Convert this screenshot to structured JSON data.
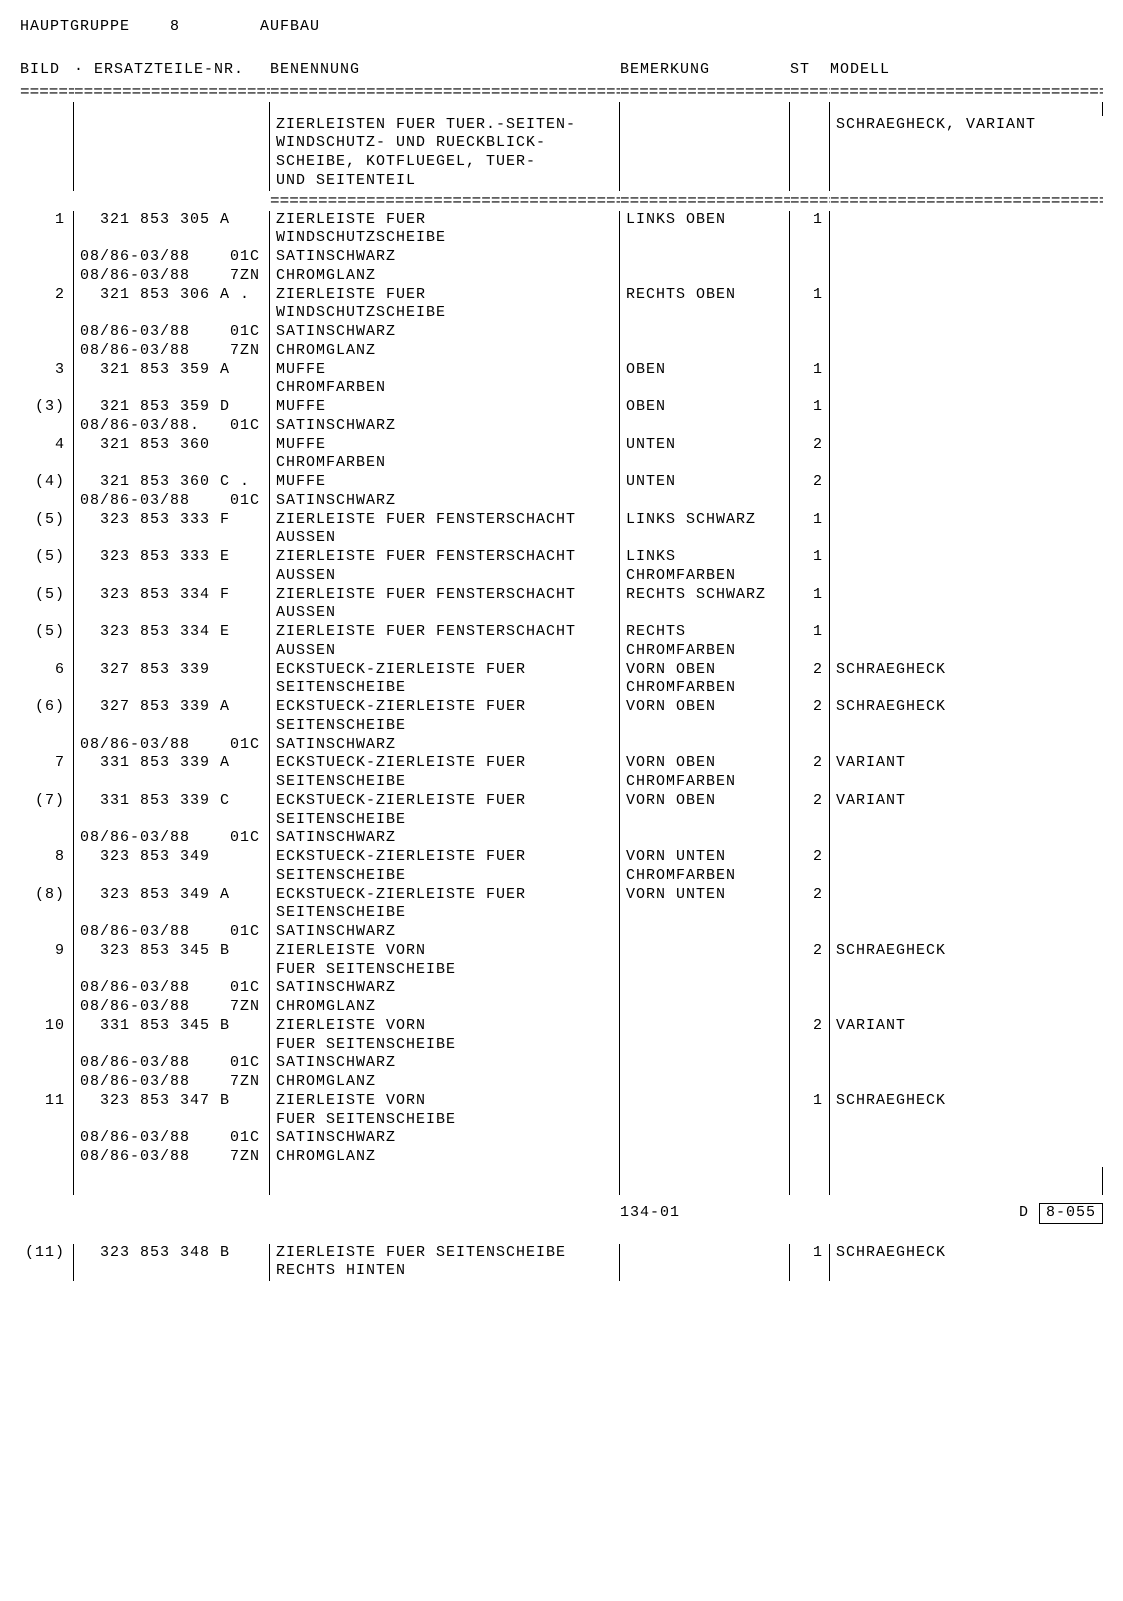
{
  "header": {
    "group_label": "HAUPTGRUPPE",
    "group_num": "8",
    "section": "AUFBAU"
  },
  "columns": {
    "bild": "BILD",
    "part": "· ERSATZTEILE-NR.",
    "ben": "BENENNUNG",
    "bem": "BEMERKUNG",
    "st": "ST",
    "mod": "MODELL"
  },
  "sep": "=====================================",
  "intro": {
    "ben": "ZIERLEISTEN FUER TUER.-SEITEN-\nWINDSCHUTZ- UND RUECKBLICK-\nSCHEIBE, KOTFLUEGEL, TUER-\nUND SEITENTEIL",
    "mod": "SCHRAEGHECK,\nVARIANT"
  },
  "rows": [
    {
      "bild": "1",
      "part": "  321 853 305 A",
      "ben": "ZIERLEISTE FUER\nWINDSCHUTZSCHEIBE",
      "bem": "LINKS OBEN",
      "st": "1",
      "mod": ""
    },
    {
      "bild": "",
      "part": "08/86-03/88    01C",
      "ben": "SATINSCHWARZ",
      "bem": "",
      "st": "",
      "mod": ""
    },
    {
      "bild": "",
      "part": "08/86-03/88    7ZN",
      "ben": "CHROMGLANZ",
      "bem": "",
      "st": "",
      "mod": ""
    },
    {
      "bild": "2",
      "part": "  321 853 306 A .",
      "ben": "ZIERLEISTE FUER\nWINDSCHUTZSCHEIBE",
      "bem": "RECHTS OBEN",
      "st": "1",
      "mod": ""
    },
    {
      "bild": "",
      "part": "08/86-03/88    01C",
      "ben": "SATINSCHWARZ",
      "bem": "",
      "st": "",
      "mod": ""
    },
    {
      "bild": "",
      "part": "08/86-03/88    7ZN",
      "ben": "CHROMGLANZ",
      "bem": "",
      "st": "",
      "mod": ""
    },
    {
      "bild": "3",
      "part": "  321 853 359 A",
      "ben": "MUFFE\nCHROMFARBEN",
      "bem": "OBEN",
      "st": "1",
      "mod": ""
    },
    {
      "bild": "(3)",
      "part": "  321 853 359 D",
      "ben": "MUFFE",
      "bem": "OBEN",
      "st": "1",
      "mod": ""
    },
    {
      "bild": "",
      "part": "08/86-03/88.   01C",
      "ben": "SATINSCHWARZ",
      "bem": "",
      "st": "",
      "mod": ""
    },
    {
      "bild": "4",
      "part": "  321 853 360",
      "ben": "MUFFE\nCHROMFARBEN",
      "bem": "UNTEN",
      "st": "2",
      "mod": ""
    },
    {
      "bild": "(4)",
      "part": "  321 853 360 C .",
      "ben": "MUFFE",
      "bem": "UNTEN",
      "st": "2",
      "mod": ""
    },
    {
      "bild": "",
      "part": "08/86-03/88    01C",
      "ben": "SATINSCHWARZ",
      "bem": "",
      "st": "",
      "mod": ""
    },
    {
      "bild": "(5)",
      "part": "  323 853 333 F",
      "ben": "ZIERLEISTE FUER FENSTERSCHACHT\nAUSSEN",
      "bem": "LINKS\nSCHWARZ",
      "st": "1",
      "mod": ""
    },
    {
      "bild": "(5)",
      "part": "  323 853 333 E",
      "ben": "ZIERLEISTE FUER FENSTERSCHACHT\nAUSSEN",
      "bem": "LINKS\nCHROMFARBEN",
      "st": "1",
      "mod": ""
    },
    {
      "bild": "(5)",
      "part": "  323 853 334 F",
      "ben": "ZIERLEISTE FUER FENSTERSCHACHT\nAUSSEN",
      "bem": "RECHTS\nSCHWARZ",
      "st": "1",
      "mod": ""
    },
    {
      "bild": "(5)",
      "part": "  323 853 334 E",
      "ben": "ZIERLEISTE FUER FENSTERSCHACHT\nAUSSEN",
      "bem": "RECHTS\nCHROMFARBEN",
      "st": "1",
      "mod": ""
    },
    {
      "bild": "6",
      "part": "  327 853 339",
      "ben": "ECKSTUECK-ZIERLEISTE FUER\nSEITENSCHEIBE",
      "bem": "VORN OBEN\nCHROMFARBEN",
      "st": "2",
      "mod": "SCHRAEGHECK"
    },
    {
      "bild": "(6)",
      "part": "  327 853 339 A",
      "ben": "ECKSTUECK-ZIERLEISTE FUER\nSEITENSCHEIBE",
      "bem": "VORN OBEN",
      "st": "2",
      "mod": "SCHRAEGHECK"
    },
    {
      "bild": "",
      "part": "08/86-03/88    01C",
      "ben": "SATINSCHWARZ",
      "bem": "",
      "st": "",
      "mod": ""
    },
    {
      "bild": "7",
      "part": "  331 853 339 A",
      "ben": "ECKSTUECK-ZIERLEISTE FUER\nSEITENSCHEIBE",
      "bem": "VORN OBEN\nCHROMFARBEN",
      "st": "2",
      "mod": "VARIANT"
    },
    {
      "bild": "(7)",
      "part": "  331 853 339 C",
      "ben": "ECKSTUECK-ZIERLEISTE FUER\nSEITENSCHEIBE",
      "bem": "VORN OBEN",
      "st": "2",
      "mod": "VARIANT"
    },
    {
      "bild": "",
      "part": "08/86-03/88    01C",
      "ben": "SATINSCHWARZ",
      "bem": "",
      "st": "",
      "mod": ""
    },
    {
      "bild": "8",
      "part": "  323 853 349",
      "ben": "ECKSTUECK-ZIERLEISTE FUER\nSEITENSCHEIBE",
      "bem": "VORN UNTEN\nCHROMFARBEN",
      "st": "2",
      "mod": ""
    },
    {
      "bild": "(8)",
      "part": "  323 853 349 A",
      "ben": "ECKSTUECK-ZIERLEISTE FUER\nSEITENSCHEIBE",
      "bem": "VORN UNTEN",
      "st": "2",
      "mod": ""
    },
    {
      "bild": "",
      "part": "08/86-03/88    01C",
      "ben": "SATINSCHWARZ",
      "bem": "",
      "st": "",
      "mod": ""
    },
    {
      "bild": "9",
      "part": "  323 853 345 B",
      "ben": "ZIERLEISTE VORN\nFUER SEITENSCHEIBE",
      "bem": "",
      "st": "2",
      "mod": "SCHRAEGHECK"
    },
    {
      "bild": "",
      "part": "08/86-03/88    01C",
      "ben": "SATINSCHWARZ",
      "bem": "",
      "st": "",
      "mod": ""
    },
    {
      "bild": "",
      "part": "08/86-03/88    7ZN",
      "ben": "CHROMGLANZ",
      "bem": "",
      "st": "",
      "mod": ""
    },
    {
      "bild": "10",
      "part": "  331 853 345 B",
      "ben": "ZIERLEISTE VORN\nFUER SEITENSCHEIBE",
      "bem": "",
      "st": "2",
      "mod": "VARIANT"
    },
    {
      "bild": "",
      "part": "08/86-03/88    01C",
      "ben": "SATINSCHWARZ",
      "bem": "",
      "st": "",
      "mod": ""
    },
    {
      "bild": "",
      "part": "08/86-03/88    7ZN",
      "ben": "CHROMGLANZ",
      "bem": "",
      "st": "",
      "mod": ""
    },
    {
      "bild": "11",
      "part": "  323 853 347 B",
      "ben": "ZIERLEISTE VORN\nFUER SEITENSCHEIBE",
      "bem": "",
      "st": "1",
      "mod": "SCHRAEGHECK"
    },
    {
      "bild": "",
      "part": "08/86-03/88    01C",
      "ben": "SATINSCHWARZ",
      "bem": "",
      "st": "",
      "mod": ""
    },
    {
      "bild": "",
      "part": "08/86-03/88    7ZN",
      "ben": "CHROMGLANZ",
      "bem": "",
      "st": "",
      "mod": ""
    }
  ],
  "footer": {
    "page": "134-01",
    "letter": "D",
    "code": "8-055"
  },
  "trail": {
    "bild": "(11)",
    "part": "  323 853 348 B",
    "ben": "ZIERLEISTE FUER SEITENSCHEIBE\nRECHTS HINTEN",
    "bem": "",
    "st": "1",
    "mod": "SCHRAEGHECK"
  }
}
